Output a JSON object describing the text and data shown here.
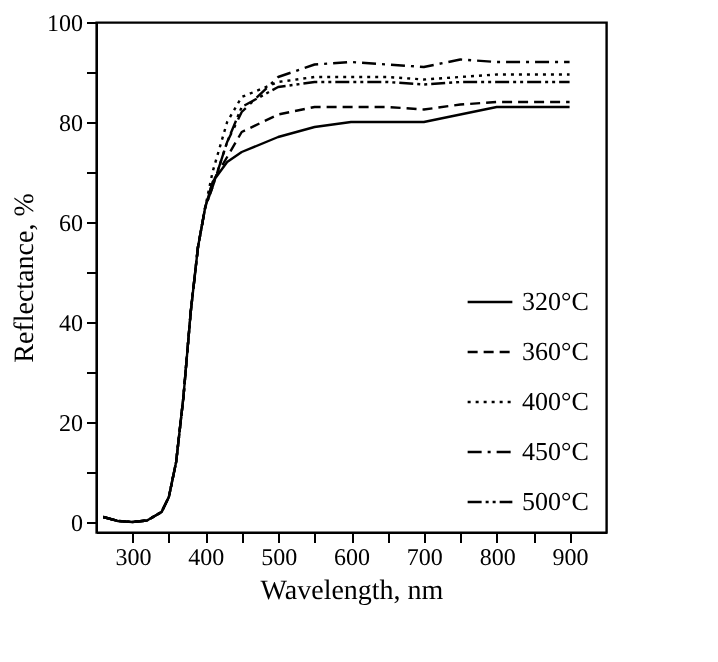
{
  "chart_data": {
    "type": "line",
    "xlabel": "Wavelength, nm",
    "ylabel": "Reflectance, %",
    "x": [
      260,
      280,
      300,
      320,
      340,
      350,
      360,
      370,
      380,
      390,
      400,
      410,
      430,
      450,
      500,
      550,
      600,
      650,
      700,
      750,
      800,
      850,
      900
    ],
    "series": [
      {
        "name": "320°C",
        "color": "#000000",
        "line_style": "solid",
        "values": [
          1,
          0.2,
          0,
          0.3,
          2,
          5,
          12,
          25,
          42,
          55,
          63,
          68,
          72,
          74,
          77,
          79,
          80,
          80,
          80,
          81.5,
          83,
          83,
          83
        ]
      },
      {
        "name": "360°C",
        "color": "#000000",
        "line_style": "dashed",
        "values": [
          1,
          0.2,
          0,
          0.3,
          2,
          5,
          12,
          25,
          42,
          55,
          63,
          68,
          73,
          78,
          81.5,
          83,
          83,
          83,
          82.5,
          83.5,
          84,
          84,
          84
        ]
      },
      {
        "name": "400°C",
        "color": "#000000",
        "line_style": "dotted",
        "values": [
          1,
          0.2,
          0,
          0.3,
          2,
          5,
          12,
          25,
          42,
          55,
          63,
          70,
          80,
          85,
          88,
          89,
          89,
          89,
          88.5,
          89,
          89.5,
          89.5,
          89.5
        ]
      },
      {
        "name": "450°C",
        "color": "#000000",
        "line_style": "dashdot",
        "values": [
          1,
          0.2,
          0,
          0.3,
          2,
          5,
          12,
          25,
          42,
          55,
          63,
          67,
          76,
          82,
          89,
          91.5,
          92,
          91.5,
          91,
          92.5,
          92,
          92,
          92
        ]
      },
      {
        "name": "500°C",
        "color": "#000000",
        "line_style": "dashdotdot",
        "values": [
          1,
          0.2,
          0,
          0.3,
          2,
          5,
          12,
          25,
          42,
          55,
          63,
          67,
          76,
          83,
          87,
          88,
          88,
          88,
          87.5,
          88,
          88,
          88,
          88
        ]
      }
    ],
    "xlim": [
      250,
      950
    ],
    "xticks": [
      300,
      {
        "value": 350,
        "label": null
      },
      400,
      {
        "value": 450,
        "label": null
      },
      500,
      {
        "value": 550,
        "label": null
      },
      600,
      {
        "value": 650,
        "label": null
      },
      700,
      {
        "value": 750,
        "label": null
      },
      800,
      {
        "value": 850,
        "label": null
      },
      900
    ],
    "ylim": [
      -2,
      100
    ],
    "yticks": [
      0,
      {
        "value": 10,
        "label": null
      },
      20,
      {
        "value": 30,
        "label": null
      },
      40,
      {
        "value": 50,
        "label": null
      },
      60,
      {
        "value": 70,
        "label": null
      },
      80,
      {
        "value": 90,
        "label": null
      },
      100
    ],
    "legend": "bottom right",
    "grid": false,
    "marker": "none"
  }
}
